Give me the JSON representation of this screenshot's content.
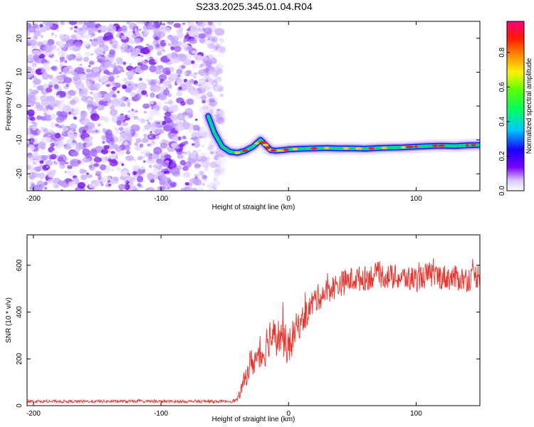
{
  "title": "S233.2025.345.01.04.R04",
  "colors": {
    "snr_line": "#e8322c",
    "track_core": "#d80000",
    "noise": "#8a2be2"
  },
  "chart_data": [
    {
      "type": "heatmap",
      "xlabel": "Height of straight line (km)",
      "ylabel": "Frequency (Hz)",
      "xlim": [
        -205,
        150
      ],
      "ylim": [
        -25,
        25
      ],
      "x_ticks": [
        "-200",
        "-100",
        "0",
        "100"
      ],
      "y_ticks": [
        "20",
        "10",
        "0",
        "-10",
        "-20"
      ],
      "x_tick_values": [
        -200,
        -100,
        0,
        100
      ],
      "y_tick_values": [
        20,
        10,
        0,
        -10,
        -20
      ],
      "colorbar": {
        "label": "Normalized spectral amplitude",
        "range": [
          0,
          0.98
        ],
        "ticks": [
          "0.0",
          "0.2",
          "0.4",
          "0.6",
          "0.8"
        ],
        "tick_values": [
          0,
          0.2,
          0.4,
          0.6,
          0.8
        ],
        "colormap": "rainbow"
      },
      "noise_region_x": [
        -205,
        -52
      ],
      "track": {
        "x": [
          -63,
          -58,
          -52,
          -46,
          -40,
          -34,
          -28,
          -22,
          -18,
          -14,
          -10,
          -4,
          0,
          10,
          20,
          30,
          40,
          50,
          60,
          70,
          80,
          90,
          100,
          110,
          120,
          130,
          140,
          150
        ],
        "y": [
          -3,
          -8,
          -12,
          -13.5,
          -13.8,
          -13.2,
          -12,
          -10,
          -11.5,
          -13,
          -13.2,
          -13,
          -12.8,
          -12.6,
          -12.5,
          -12.4,
          -12.5,
          -12.5,
          -12.6,
          -12.4,
          -12.3,
          -12.2,
          -12.0,
          -11.8,
          -11.7,
          -11.8,
          -11.6,
          -11.5
        ]
      }
    },
    {
      "type": "line",
      "xlabel": "Height of straight line (km)",
      "ylabel": "SNR (10 * v/v)",
      "xlim": [
        -205,
        150
      ],
      "ylim": [
        0,
        730
      ],
      "x_ticks": [
        "-200",
        "-100",
        "0",
        "100"
      ],
      "y_ticks": [
        "0",
        "200",
        "400",
        "600"
      ],
      "x_tick_values": [
        -200,
        -100,
        0,
        100
      ],
      "y_tick_values": [
        0,
        200,
        400,
        600
      ],
      "series": [
        {
          "color": "#e8322c",
          "x": [
            -205,
            -150,
            -100,
            -60,
            -45,
            -40,
            -35,
            -30,
            -20,
            -15,
            -10,
            -5,
            0,
            5,
            10,
            15,
            20,
            30,
            40,
            50,
            60,
            70,
            80,
            90,
            100,
            110,
            120,
            130,
            140,
            150
          ],
          "y": [
            18,
            18,
            18,
            18,
            19,
            25,
            100,
            180,
            220,
            300,
            290,
            300,
            240,
            320,
            360,
            400,
            450,
            490,
            520,
            540,
            545,
            560,
            550,
            545,
            540,
            560,
            550,
            545,
            540,
            560
          ],
          "noise_amplitude": [
            6,
            6,
            6,
            6,
            6,
            10,
            40,
            60,
            80,
            90,
            80,
            80,
            80,
            70,
            60,
            60,
            60,
            55,
            55,
            55,
            55,
            55,
            55,
            55,
            55,
            55,
            55,
            55,
            55,
            55
          ]
        }
      ]
    }
  ]
}
